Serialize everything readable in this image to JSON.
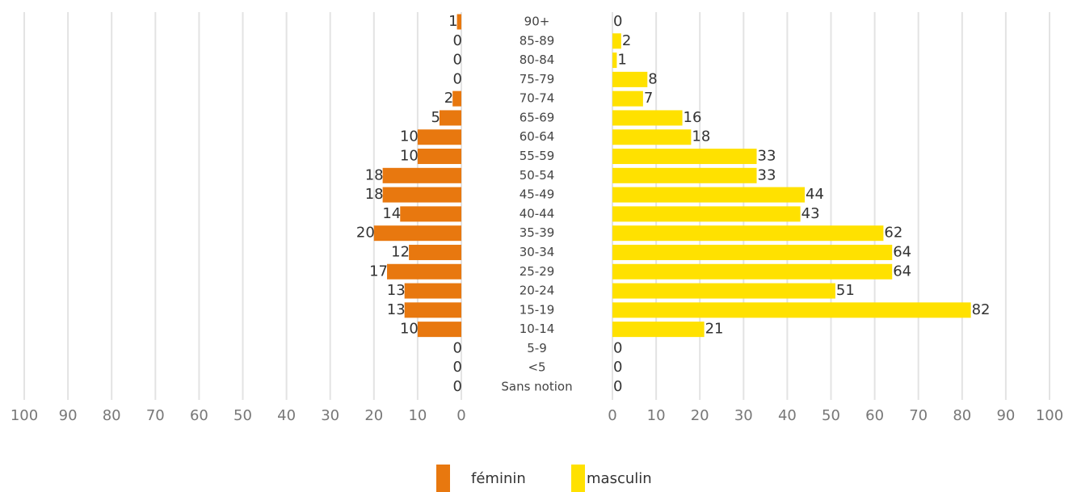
{
  "chart_data": {
    "type": "bar",
    "orientation": "horizontal-pyramid",
    "categories": [
      "90+",
      "85-89",
      "80-84",
      "75-79",
      "70-74",
      "65-69",
      "60-64",
      "55-59",
      "50-54",
      "45-49",
      "40-44",
      "35-39",
      "30-34",
      "25-29",
      "20-24",
      "15-19",
      "10-14",
      "5-9",
      "<5",
      "Sans notion"
    ],
    "series": [
      {
        "name": "féminin",
        "color": "#e8780f",
        "values": [
          1,
          0,
          0,
          0,
          2,
          5,
          10,
          10,
          18,
          18,
          14,
          20,
          12,
          17,
          13,
          13,
          10,
          0,
          0,
          0
        ]
      },
      {
        "name": "masculin",
        "color": "#ffe100",
        "values": [
          0,
          2,
          1,
          8,
          7,
          16,
          18,
          33,
          33,
          44,
          43,
          62,
          64,
          64,
          51,
          82,
          21,
          0,
          0,
          0
        ]
      }
    ],
    "xlim": [
      0,
      100
    ],
    "xticks": [
      0,
      10,
      20,
      30,
      40,
      50,
      60,
      70,
      80,
      90,
      100
    ],
    "grid": true,
    "legend": "bottom"
  }
}
